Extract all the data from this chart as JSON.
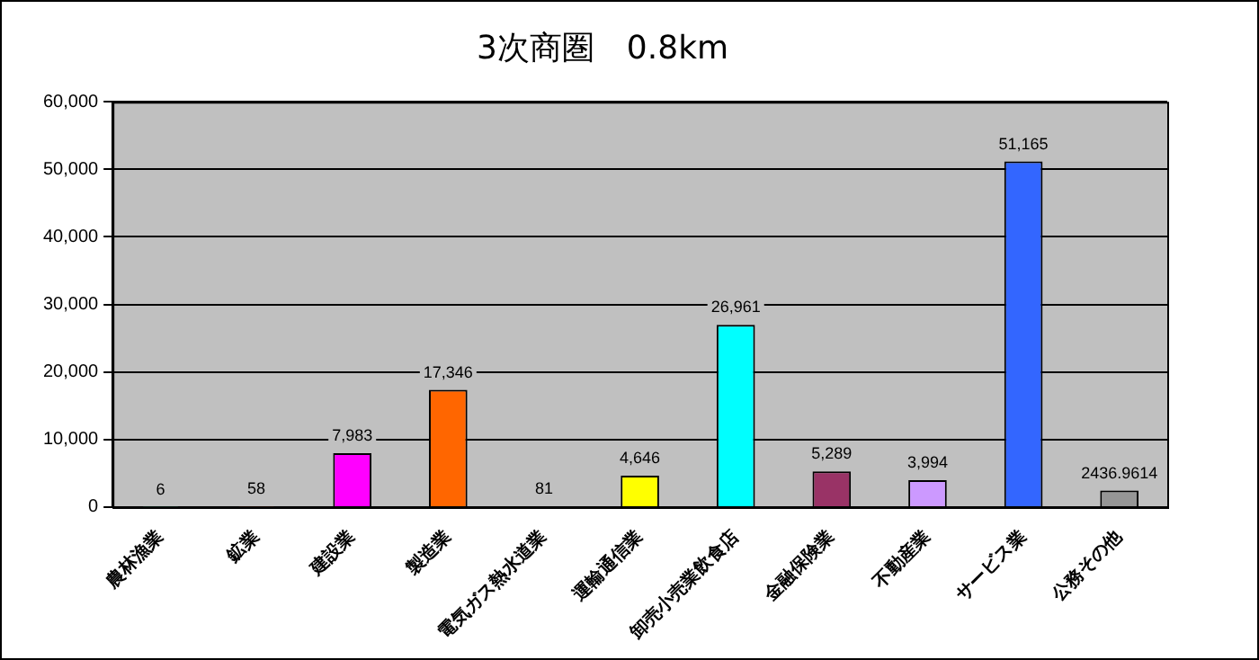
{
  "chart_data": {
    "type": "bar",
    "title": "3次商圏　0.8km",
    "categories": [
      "農林漁業",
      "鉱業",
      "建設業",
      "製造業",
      "電気ガス熱水道業",
      "運輸通信業",
      "卸売小売業飲食店",
      "金融保険業",
      "不動産業",
      "サービス業",
      "公務その他"
    ],
    "values": [
      6,
      58,
      7983,
      17346,
      81,
      4646,
      26961,
      5289,
      3994,
      51165,
      2436.9614
    ],
    "colors": [
      "#217a55",
      "#993300",
      "#ff00ff",
      "#ff6600",
      "#7f9f00",
      "#ffff00",
      "#00ffff",
      "#993366",
      "#cc99ff",
      "#3366ff",
      "#969696"
    ],
    "value_labels": [
      "6",
      "58",
      "7,983",
      "17,346",
      "81",
      "4,646",
      "26,961",
      "5,289",
      "3,994",
      "51,165",
      "2436.9614"
    ],
    "ylim": [
      0,
      60000
    ],
    "yticks": [
      {
        "value": 0,
        "label": "0"
      },
      {
        "value": 10000,
        "label": "10,000"
      },
      {
        "value": 20000,
        "label": "20,000"
      },
      {
        "value": 30000,
        "label": "30,000"
      },
      {
        "value": 40000,
        "label": "40,000"
      },
      {
        "value": 50000,
        "label": "50,000"
      },
      {
        "value": 60000,
        "label": "60,000"
      }
    ],
    "grid": "y",
    "legend": false
  }
}
